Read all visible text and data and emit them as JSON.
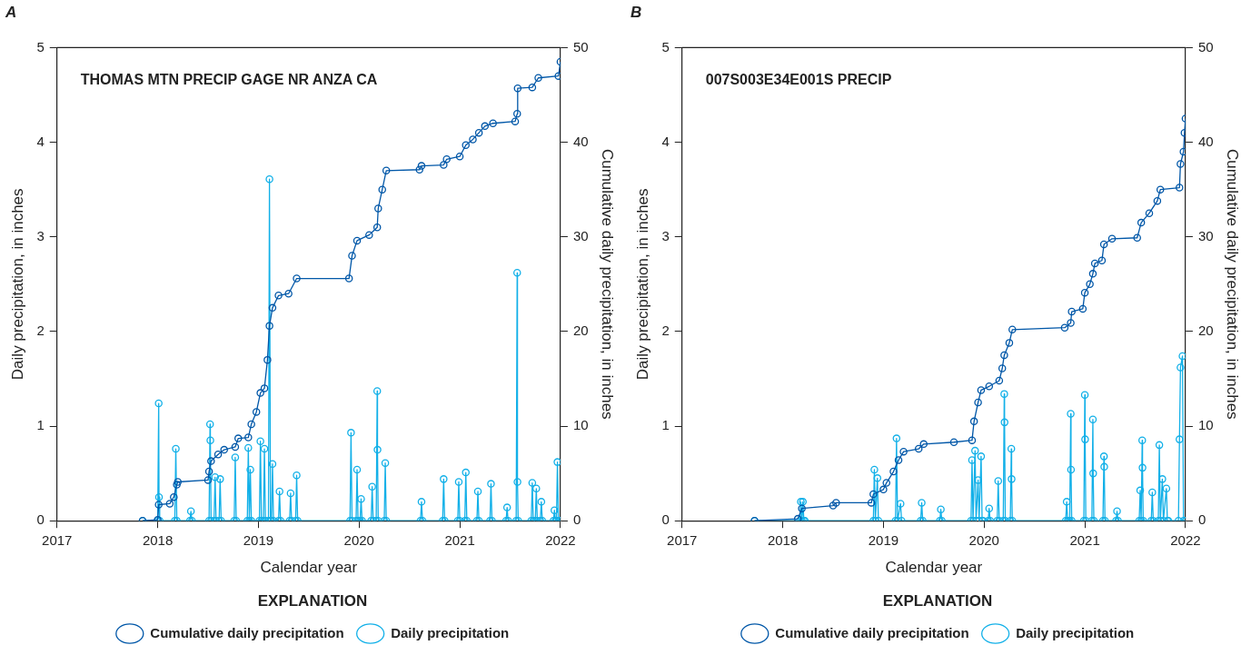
{
  "chart_data": [
    {
      "type": "line",
      "title": "A",
      "xlabel": "Calendar year",
      "ylabel": "Daily precipitation, in inches",
      "y2label": "Cumulative daily precipitation, in inches",
      "legend_title": "EXPLANATION",
      "legend": "bottom",
      "marker": "circle",
      "grid": false,
      "annotations": [
        "THOMAS MTN PRECIP GAGE NR ANZA CA"
      ],
      "xlim": [
        2017,
        2022
      ],
      "xticks": [
        2017,
        2018,
        2019,
        2020,
        2021,
        2022
      ],
      "ylim": [
        0,
        5
      ],
      "yticks": [
        0,
        1,
        2,
        3,
        4,
        5
      ],
      "y2lim": [
        0,
        50
      ],
      "y2ticks": [
        0,
        10,
        20,
        30,
        40,
        50
      ],
      "series": [
        {
          "name": "Daily precipitation",
          "color": "#12b0e8",
          "axis": "y",
          "x": [
            2017.85,
            2018.0,
            2018.01,
            2018.013,
            2018.02,
            2018.17,
            2018.18,
            2018.19,
            2018.32,
            2018.33,
            2018.34,
            2018.51,
            2018.52,
            2018.523,
            2018.53,
            2018.56,
            2018.57,
            2018.58,
            2018.61,
            2018.62,
            2018.63,
            2018.76,
            2018.77,
            2018.78,
            2018.89,
            2018.9,
            2018.91,
            2018.92,
            2018.93,
            2019.01,
            2019.02,
            2019.03,
            2019.05,
            2019.06,
            2019.07,
            2019.1,
            2019.11,
            2019.12,
            2019.13,
            2019.14,
            2019.15,
            2019.2,
            2019.21,
            2019.22,
            2019.31,
            2019.32,
            2019.33,
            2019.37,
            2019.38,
            2019.39,
            2019.91,
            2019.92,
            2019.93,
            2019.97,
            2019.98,
            2019.99,
            2020.01,
            2020.02,
            2020.03,
            2020.12,
            2020.13,
            2020.14,
            2020.17,
            2020.18,
            2020.183,
            2020.19,
            2020.25,
            2020.26,
            2020.27,
            2020.61,
            2020.62,
            2020.63,
            2020.83,
            2020.84,
            2020.85,
            2020.98,
            2020.99,
            2021.0,
            2021.05,
            2021.06,
            2021.07,
            2021.17,
            2021.18,
            2021.19,
            2021.3,
            2021.31,
            2021.32,
            2021.46,
            2021.47,
            2021.48,
            2021.56,
            2021.57,
            2021.573,
            2021.58,
            2021.71,
            2021.72,
            2021.73,
            2021.75,
            2021.76,
            2021.77,
            2021.8,
            2021.81,
            2021.82,
            2021.93,
            2021.94,
            2021.95,
            2021.96,
            2021.97,
            2021.98,
            2022.0
          ],
          "values": [
            0,
            0,
            1.24,
            0.25,
            0,
            0,
            0.76,
            0,
            0,
            0.1,
            0,
            0,
            1.02,
            0.85,
            0,
            0,
            0.46,
            0,
            0,
            0.44,
            0,
            0,
            0.67,
            0,
            0,
            0.77,
            0,
            0.54,
            0,
            0,
            0.84,
            0,
            0,
            0.76,
            0,
            0,
            3.61,
            0,
            0,
            0.6,
            0,
            0,
            0.31,
            0,
            0,
            0.29,
            0,
            0,
            0.48,
            0,
            0,
            0.93,
            0,
            0,
            0.54,
            0,
            0,
            0.23,
            0,
            0,
            0.36,
            0,
            0,
            1.37,
            0.75,
            0,
            0,
            0.61,
            0,
            0,
            0.2,
            0,
            0,
            0.44,
            0,
            0,
            0.41,
            0,
            0,
            0.51,
            0,
            0,
            0.31,
            0,
            0,
            0.39,
            0,
            0,
            0.14,
            0,
            0,
            2.62,
            0.41,
            0,
            0,
            0.4,
            0,
            0,
            0.34,
            0,
            0,
            0.2,
            0,
            0,
            0.11,
            0,
            0,
            0.62,
            0,
            0
          ]
        },
        {
          "name": "Cumulative daily precipitation",
          "color": "#0057a8",
          "axis": "y2",
          "x": [
            2017.85,
            2018.0,
            2018.01,
            2018.12,
            2018.16,
            2018.19,
            2018.2,
            2018.5,
            2018.51,
            2018.53,
            2018.6,
            2018.66,
            2018.77,
            2018.8,
            2018.9,
            2018.93,
            2018.98,
            2019.02,
            2019.06,
            2019.09,
            2019.11,
            2019.14,
            2019.2,
            2019.3,
            2019.38,
            2019.9,
            2019.93,
            2019.98,
            2020.1,
            2020.18,
            2020.19,
            2020.23,
            2020.27,
            2020.6,
            2020.62,
            2020.84,
            2020.87,
            2021.0,
            2021.06,
            2021.13,
            2021.19,
            2021.25,
            2021.33,
            2021.55,
            2021.57,
            2021.575,
            2021.72,
            2021.78,
            2021.98,
            2022.0
          ],
          "values": [
            0,
            0.1,
            1.7,
            1.8,
            2.5,
            3.8,
            4.1,
            4.3,
            5.2,
            6.3,
            7,
            7.5,
            7.8,
            8.7,
            8.8,
            10.2,
            11.5,
            13.5,
            14,
            17,
            20.6,
            22.5,
            23.8,
            24,
            25.6,
            25.6,
            28,
            29.6,
            30.2,
            31,
            33,
            35,
            37,
            37.1,
            37.5,
            37.6,
            38.2,
            38.5,
            39.7,
            40.3,
            41,
            41.7,
            42,
            42.2,
            43,
            45.7,
            45.8,
            46.8,
            47,
            48.5
          ]
        }
      ]
    },
    {
      "type": "line",
      "title": "B",
      "xlabel": "Calendar year",
      "ylabel": "Daily precipitation, in inches",
      "y2label": "Cumulative daily precipitation, in inches",
      "legend_title": "EXPLANATION",
      "legend": "bottom",
      "marker": "circle",
      "grid": false,
      "annotations": [
        "007S003E34E001S PRECIP"
      ],
      "xlim": [
        2017,
        2022
      ],
      "xticks": [
        2017,
        2018,
        2019,
        2020,
        2021,
        2022
      ],
      "ylim": [
        0,
        5
      ],
      "yticks": [
        0,
        1,
        2,
        3,
        4,
        5
      ],
      "y2lim": [
        0,
        50
      ],
      "y2ticks": [
        0,
        10,
        20,
        30,
        40,
        50
      ],
      "series": [
        {
          "name": "Daily precipitation",
          "color": "#12b0e8",
          "axis": "y",
          "x": [
            2017.72,
            2018.17,
            2018.18,
            2018.19,
            2018.2,
            2018.21,
            2018.22,
            2018.9,
            2018.91,
            2018.92,
            2018.94,
            2018.95,
            2019.12,
            2019.13,
            2019.14,
            2019.17,
            2019.18,
            2019.37,
            2019.38,
            2019.39,
            2019.56,
            2019.57,
            2019.58,
            2019.87,
            2019.88,
            2019.89,
            2019.91,
            2019.92,
            2019.94,
            2019.95,
            2019.97,
            2019.98,
            2019.99,
            2020.04,
            2020.05,
            2020.06,
            2020.13,
            2020.14,
            2020.15,
            2020.19,
            2020.2,
            2020.203,
            2020.21,
            2020.26,
            2020.27,
            2020.273,
            2020.28,
            2020.81,
            2020.82,
            2020.83,
            2020.85,
            2020.86,
            2020.863,
            2020.87,
            2020.99,
            2021.0,
            2021.003,
            2021.01,
            2021.07,
            2021.08,
            2021.083,
            2021.09,
            2021.18,
            2021.19,
            2021.193,
            2021.2,
            2021.31,
            2021.32,
            2021.33,
            2021.54,
            2021.55,
            2021.56,
            2021.57,
            2021.573,
            2021.58,
            2021.66,
            2021.67,
            2021.68,
            2021.73,
            2021.74,
            2021.75,
            2021.77,
            2021.78,
            2021.81,
            2021.82,
            2021.83,
            2021.93,
            2021.94,
            2021.95,
            2021.97,
            2021.98,
            2022.0
          ],
          "values": [
            0,
            0,
            0.2,
            0,
            0.2,
            0,
            0,
            0,
            0.54,
            0,
            0.45,
            0,
            0,
            0.87,
            0,
            0.18,
            0,
            0,
            0.19,
            0,
            0,
            0.12,
            0,
            0,
            0.64,
            0,
            0.74,
            0,
            0.43,
            0,
            0.68,
            0,
            0,
            0,
            0.13,
            0,
            0,
            0.42,
            0,
            0,
            1.34,
            1.04,
            0,
            0,
            0.76,
            0.44,
            0,
            0,
            0.2,
            0,
            0,
            1.13,
            0.54,
            0,
            0,
            1.33,
            0.86,
            0,
            0,
            1.07,
            0.5,
            0,
            0,
            0.68,
            0.57,
            0,
            0,
            0.1,
            0,
            0,
            0.32,
            0,
            0.85,
            0.56,
            0,
            0,
            0.3,
            0,
            0,
            0.8,
            0,
            0.44,
            0,
            0.34,
            0,
            0,
            0,
            0.86,
            1.62,
            1.74,
            0,
            0
          ]
        },
        {
          "name": "Cumulative daily precipitation",
          "color": "#0057a8",
          "axis": "y2",
          "x": [
            2017.72,
            2018.15,
            2018.19,
            2018.5,
            2018.53,
            2018.88,
            2018.9,
            2019.0,
            2019.03,
            2019.1,
            2019.15,
            2019.2,
            2019.35,
            2019.4,
            2019.7,
            2019.88,
            2019.9,
            2019.94,
            2019.97,
            2020.05,
            2020.15,
            2020.18,
            2020.2,
            2020.25,
            2020.28,
            2020.8,
            2020.86,
            2020.87,
            2020.98,
            2021.0,
            2021.05,
            2021.08,
            2021.1,
            2021.17,
            2021.19,
            2021.27,
            2021.52,
            2021.56,
            2021.64,
            2021.72,
            2021.75,
            2021.94,
            2021.95,
            2021.98,
            2021.99,
            2022.0
          ],
          "values": [
            0,
            0.2,
            1.3,
            1.6,
            1.9,
            1.9,
            2.8,
            3.3,
            4,
            5.2,
            6.4,
            7.3,
            7.6,
            8.1,
            8.3,
            8.5,
            10.5,
            12.5,
            13.8,
            14.2,
            14.8,
            16.1,
            17.5,
            18.8,
            20.2,
            20.4,
            20.9,
            22.1,
            22.4,
            24.1,
            25,
            26.1,
            27.2,
            27.5,
            29.2,
            29.8,
            29.9,
            31.5,
            32.5,
            33.8,
            35,
            35.2,
            37.7,
            39,
            41,
            42.5
          ]
        }
      ]
    }
  ]
}
